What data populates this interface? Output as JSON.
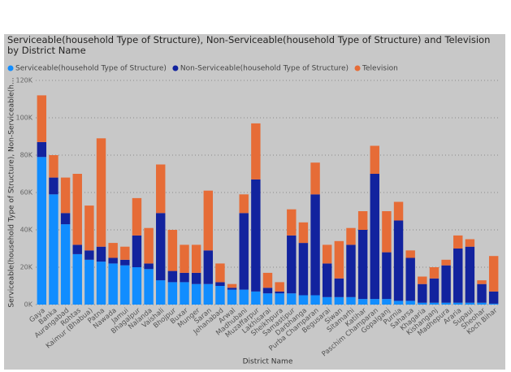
{
  "chart_data": {
    "type": "stacked_bar",
    "title": "Serviceable(household Type of Structure), Non-Serviceable(household Type of Structure) and Television by District Name",
    "x_label": "District Name",
    "y_label": "Serviceable(household Type of Structure), Non-Serviceable(h...",
    "categories": [
      "Gaya",
      "Banka",
      "Aurangabad",
      "Rohtas",
      "Kaimur (Bhabua)",
      "Patna",
      "Nawada",
      "Jamui",
      "Bhagalpur",
      "Nalanda",
      "Vaishali",
      "Bhojpur",
      "Buxar",
      "Munger",
      "Saran",
      "Jehanabad",
      "Arwal",
      "Madhubani",
      "Muzaffarpur",
      "Lakhisarai",
      "Sheikhpura",
      "Samastipur",
      "Darbhanga",
      "Purba Champaran",
      "Begusarai",
      "Siwan",
      "Sitamarhi",
      "Katihar",
      "Paschim Champaran",
      "Gopalganj",
      "Purnia",
      "Saharsa",
      "Khagaria",
      "Kishanganj",
      "Madhepura",
      "Araria",
      "Supaul",
      "Sheohar",
      "Koch Bihar"
    ],
    "series": [
      {
        "name": "Serviceable(household Type of Structure)",
        "color": "#118DFF",
        "values": [
          79000,
          59000,
          43000,
          27000,
          24000,
          23000,
          22000,
          21000,
          20000,
          19000,
          13000,
          12000,
          12000,
          11000,
          11000,
          10000,
          8000,
          8000,
          7000,
          6000,
          6000,
          6000,
          5000,
          5000,
          4000,
          4000,
          4000,
          3000,
          3000,
          3000,
          2000,
          2000,
          1000,
          1000,
          1000,
          1000,
          1000,
          1000,
          500
        ]
      },
      {
        "name": "Non-Serviceable(household Type of Structure)",
        "color": "#12239E",
        "values": [
          8000,
          9000,
          6000,
          5000,
          5000,
          8000,
          3000,
          3000,
          17000,
          3000,
          36000,
          6000,
          5000,
          6000,
          18000,
          2000,
          1000,
          41000,
          60000,
          3000,
          1000,
          31000,
          28000,
          54000,
          18000,
          10000,
          28000,
          37000,
          67000,
          25000,
          43000,
          23000,
          10000,
          13000,
          20000,
          29000,
          30000,
          10000,
          6500
        ]
      },
      {
        "name": "Television",
        "color": "#E66C37",
        "values": [
          25000,
          12000,
          19000,
          38000,
          24000,
          58000,
          8000,
          7000,
          20000,
          19000,
          26000,
          22000,
          15000,
          15000,
          32000,
          10000,
          2000,
          10000,
          30000,
          8000,
          5000,
          14000,
          11000,
          17000,
          10000,
          20000,
          9000,
          10000,
          15000,
          22000,
          10000,
          4000,
          4000,
          6000,
          3000,
          7000,
          4000,
          2000,
          19000
        ]
      }
    ],
    "ylim": [
      0,
      120000
    ],
    "yticks": [
      {
        "value": 0,
        "label": "0K"
      },
      {
        "value": 20000,
        "label": "20K"
      },
      {
        "value": 40000,
        "label": "40K"
      },
      {
        "value": 60000,
        "label": "60K"
      },
      {
        "value": 80000,
        "label": "80K"
      },
      {
        "value": 100000,
        "label": "100K"
      },
      {
        "value": 120000,
        "label": "120K"
      }
    ],
    "grid": true,
    "legend": "top-left"
  }
}
